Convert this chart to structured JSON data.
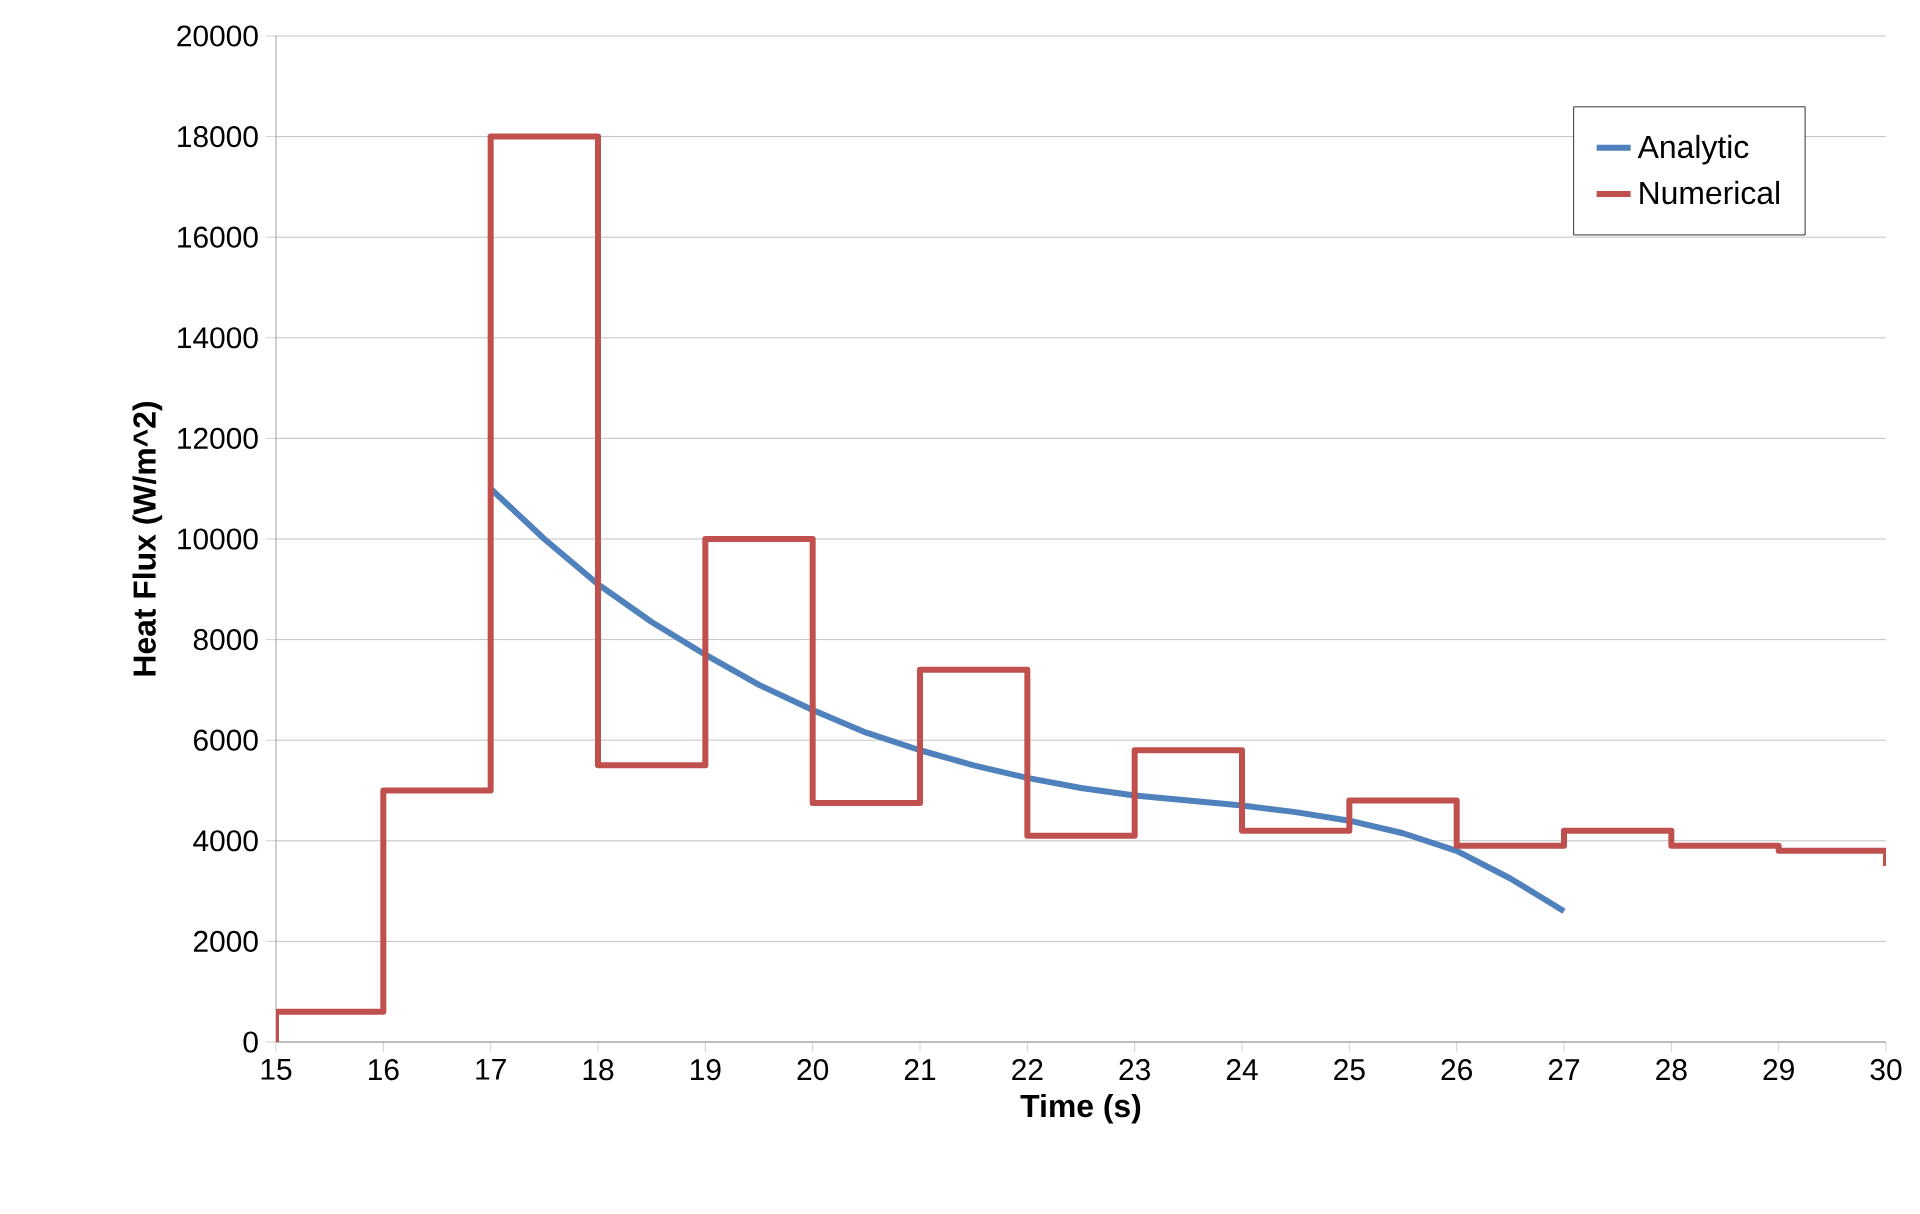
{
  "chart_data": {
    "type": "line",
    "xlabel": "Time (s)",
    "ylabel": "Heat Flux (W/m^2)",
    "xlim": [
      15,
      30
    ],
    "xticks": [
      15,
      16,
      17,
      18,
      19,
      20,
      21,
      22,
      23,
      24,
      25,
      26,
      27,
      28,
      29,
      30
    ],
    "ylim": [
      0,
      20000
    ],
    "yticks": [
      0,
      2000,
      4000,
      6000,
      8000,
      10000,
      12000,
      14000,
      16000,
      18000,
      20000
    ],
    "grid": "y",
    "legend": "top right",
    "marker": "none",
    "line_style": "solid",
    "series": [
      {
        "name": "Analytic",
        "color": "#4f81bd",
        "x": [
          17,
          17.5,
          18,
          18.5,
          19,
          19.5,
          20,
          20.5,
          21,
          21.5,
          22,
          22.5,
          23,
          23.5,
          24,
          24.5,
          25,
          25.5,
          26,
          26.5,
          27
        ],
        "values": [
          11000,
          10000,
          9100,
          8350,
          7700,
          7100,
          6600,
          6150,
          5800,
          5500,
          5250,
          5050,
          4900,
          4800,
          4700,
          4570,
          4400,
          4150,
          3800,
          3250,
          2600
        ]
      },
      {
        "name": "Numerical",
        "color": "#c0504d",
        "type": "step",
        "x": [
          15,
          15,
          16,
          17,
          18,
          19,
          20,
          21,
          22,
          23,
          24,
          25,
          26,
          27,
          28,
          29,
          30,
          30
        ],
        "values": [
          0,
          600,
          5000,
          18000,
          5500,
          10000,
          4750,
          7400,
          4100,
          5800,
          4200,
          4800,
          3900,
          4200,
          3900,
          3800,
          3800,
          3500
        ]
      }
    ]
  }
}
